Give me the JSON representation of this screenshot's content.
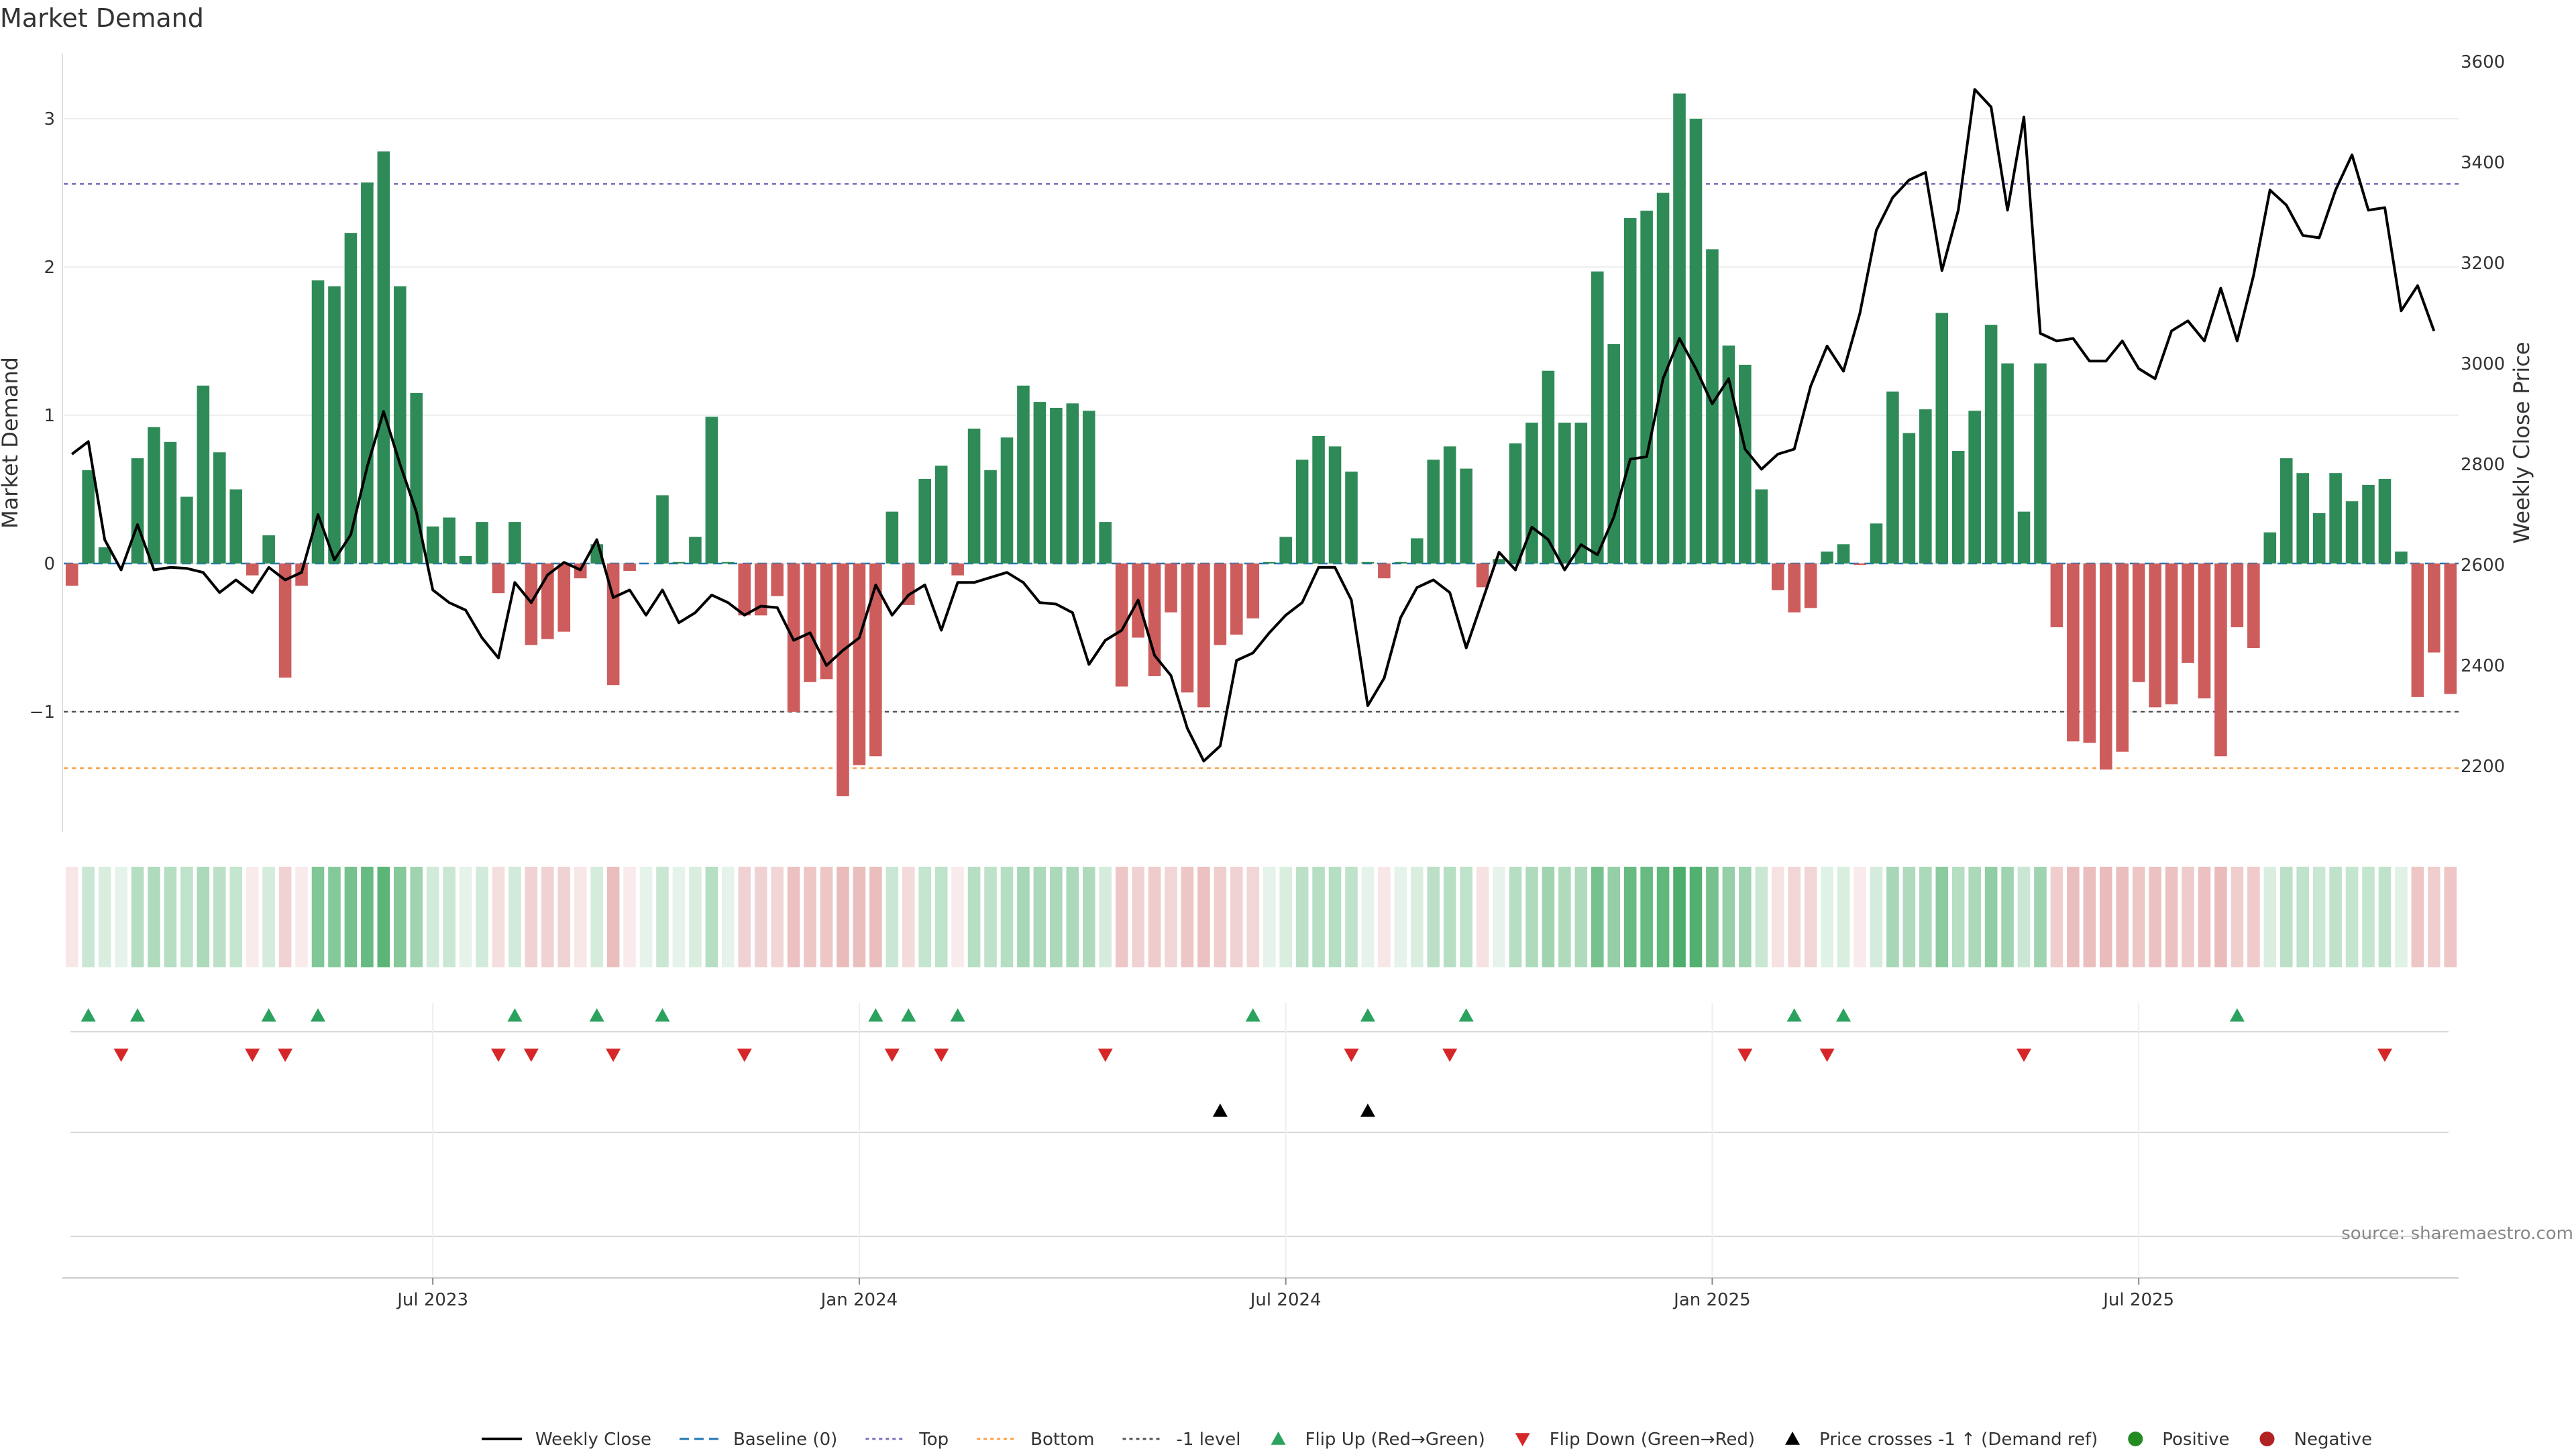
{
  "chart_data": {
    "type": "bar+line",
    "title": "Market Demand",
    "ylabel_left": "Market Demand",
    "ylabel_right": "Weekly Close Price",
    "source": "source: sharemaestro.com",
    "ylim_left": [
      -1.8,
      3.4
    ],
    "ylim_right": [
      2100,
      3600
    ],
    "left_ticks": [
      {
        "v": 3,
        "label": "3"
      },
      {
        "v": 2,
        "label": "2"
      },
      {
        "v": 1,
        "label": "1"
      },
      {
        "v": 0,
        "label": "0"
      },
      {
        "v": -1,
        "label": "−1"
      }
    ],
    "right_ticks": [
      {
        "v": 3600,
        "label": "3600"
      },
      {
        "v": 3400,
        "label": "3400"
      },
      {
        "v": 3200,
        "label": "3200"
      },
      {
        "v": 3000,
        "label": "3000"
      },
      {
        "v": 2800,
        "label": "2800"
      },
      {
        "v": 2600,
        "label": "2600"
      },
      {
        "v": 2400,
        "label": "2400"
      },
      {
        "v": 2200,
        "label": "2200"
      }
    ],
    "x_ticks": [
      {
        "week": 22,
        "label": "Jul 2023"
      },
      {
        "week": 48,
        "label": "Jan 2024"
      },
      {
        "week": 74,
        "label": "Jul 2024"
      },
      {
        "week": 100,
        "label": "Jan 2025"
      },
      {
        "week": 126,
        "label": "Jul 2025"
      }
    ],
    "reference_lines": {
      "top": 2.56,
      "bottom": -1.38,
      "minus_one": -1,
      "baseline": 0
    },
    "demand": [
      -0.15,
      0.63,
      0.11,
      0,
      0.71,
      0.92,
      0.82,
      0.45,
      1.2,
      0.75,
      0.5,
      -0.08,
      0.19,
      -0.77,
      -0.15,
      1.91,
      1.87,
      2.23,
      2.57,
      2.78,
      1.87,
      1.15,
      0.25,
      0.31,
      0.05,
      0.28,
      -0.2,
      0.28,
      -0.55,
      -0.51,
      -0.46,
      -0.1,
      0.13,
      -0.82,
      -0.05,
      0,
      0.46,
      0.01,
      0.18,
      0.99,
      0.01,
      -0.35,
      -0.35,
      -0.22,
      -1.0,
      -0.8,
      -0.78,
      -1.57,
      -1.36,
      -1.3,
      0.35,
      -0.28,
      0.57,
      0.66,
      -0.08,
      0.91,
      0.63,
      0.85,
      1.2,
      1.09,
      1.05,
      1.08,
      1.03,
      0.28,
      -0.83,
      -0.5,
      -0.76,
      -0.33,
      -0.87,
      -0.97,
      -0.55,
      -0.48,
      -0.37,
      0.01,
      0.18,
      0.7,
      0.86,
      0.79,
      0.62,
      0.01,
      -0.1,
      0.01,
      0.17,
      0.7,
      0.79,
      0.64,
      -0.16,
      0.03,
      0.81,
      0.95,
      1.3,
      0.95,
      0.95,
      1.97,
      1.48,
      2.33,
      2.38,
      2.5,
      3.17,
      3.0,
      2.12,
      1.47,
      1.34,
      0.5,
      -0.18,
      -0.33,
      -0.3,
      0.08,
      0.13,
      -0.01,
      0.27,
      1.16,
      0.88,
      1.04,
      1.69,
      0.76,
      1.03,
      1.61,
      1.35,
      0.35,
      1.35,
      -0.43,
      -1.2,
      -1.21,
      -1.39,
      -1.27,
      -0.8,
      -0.97,
      -0.95,
      -0.67,
      -0.91,
      -1.3,
      -0.43,
      -0.57,
      0.21,
      0.71,
      0.61,
      0.34,
      0.61,
      0.42,
      0.53,
      0.57,
      0.08,
      -0.9,
      -0.6,
      -0.88
    ],
    "weekly_close": [
      2820,
      2845,
      2650,
      2590,
      2680,
      2590,
      2595,
      2593,
      2585,
      2545,
      2570,
      2545,
      2595,
      2570,
      2585,
      2700,
      2610,
      2660,
      2795,
      2905,
      2800,
      2705,
      2550,
      2525,
      2510,
      2455,
      2415,
      2565,
      2525,
      2580,
      2605,
      2590,
      2650,
      2535,
      2550,
      2500,
      2550,
      2485,
      2505,
      2540,
      2525,
      2500,
      2518,
      2515,
      2450,
      2465,
      2400,
      2430,
      2455,
      2560,
      2500,
      2540,
      2560,
      2470,
      2565,
      2565,
      2575,
      2585,
      2565,
      2525,
      2522,
      2505,
      2402,
      2450,
      2470,
      2530,
      2420,
      2380,
      2275,
      2210,
      2240,
      2410,
      2425,
      2465,
      2500,
      2525,
      2595,
      2595,
      2530,
      2320,
      2375,
      2495,
      2555,
      2570,
      2545,
      2435,
      2530,
      2625,
      2590,
      2675,
      2650,
      2590,
      2640,
      2620,
      2695,
      2810,
      2815,
      2970,
      3050,
      2990,
      2920,
      2970,
      2830,
      2790,
      2820,
      2830,
      2955,
      3035,
      2985,
      3100,
      3265,
      3330,
      3365,
      3380,
      3185,
      3305,
      3545,
      3510,
      3305,
      3490,
      3060,
      3045,
      3050,
      3005,
      3005,
      3045,
      2990,
      2970,
      3065,
      3085,
      3045,
      3150,
      3045,
      3175,
      3345,
      3315,
      3255,
      3250,
      3345,
      3415,
      3305,
      3310,
      3105,
      3155,
      3065
    ],
    "heatmap_intensity": [
      0.15,
      0.25,
      0.18,
      0.12,
      0.35,
      0.38,
      0.35,
      0.3,
      0.4,
      0.32,
      0.28,
      0.12,
      0.2,
      0.28,
      0.12,
      0.6,
      0.58,
      0.65,
      0.72,
      0.78,
      0.58,
      0.45,
      0.22,
      0.25,
      0.12,
      0.22,
      0.2,
      0.22,
      0.28,
      0.28,
      0.28,
      0.15,
      0.2,
      0.4,
      0.12,
      0.12,
      0.25,
      0.12,
      0.18,
      0.35,
      0.12,
      0.28,
      0.28,
      0.25,
      0.38,
      0.35,
      0.35,
      0.42,
      0.4,
      0.4,
      0.25,
      0.22,
      0.28,
      0.3,
      0.12,
      0.35,
      0.3,
      0.35,
      0.42,
      0.4,
      0.4,
      0.4,
      0.38,
      0.2,
      0.35,
      0.28,
      0.32,
      0.25,
      0.35,
      0.38,
      0.3,
      0.28,
      0.25,
      0.12,
      0.18,
      0.32,
      0.35,
      0.35,
      0.3,
      0.12,
      0.15,
      0.12,
      0.18,
      0.32,
      0.35,
      0.3,
      0.18,
      0.12,
      0.35,
      0.38,
      0.45,
      0.38,
      0.38,
      0.65,
      0.5,
      0.72,
      0.72,
      0.75,
      0.85,
      0.82,
      0.65,
      0.5,
      0.45,
      0.25,
      0.18,
      0.25,
      0.25,
      0.15,
      0.18,
      0.12,
      0.2,
      0.42,
      0.38,
      0.4,
      0.55,
      0.35,
      0.4,
      0.52,
      0.45,
      0.25,
      0.45,
      0.3,
      0.4,
      0.4,
      0.42,
      0.4,
      0.35,
      0.38,
      0.38,
      0.32,
      0.38,
      0.42,
      0.3,
      0.32,
      0.18,
      0.32,
      0.3,
      0.25,
      0.3,
      0.28,
      0.28,
      0.3,
      0.15,
      0.35,
      0.3,
      0.35
    ],
    "flip_up_weeks": [
      1,
      4,
      12,
      15,
      27,
      32,
      36,
      49,
      51,
      54,
      72,
      79,
      85,
      105,
      108,
      132
    ],
    "flip_down_weeks": [
      3,
      11,
      13,
      26,
      28,
      33,
      41,
      50,
      53,
      63,
      78,
      84,
      102,
      107,
      119,
      141
    ],
    "price_cross_weeks": [
      70,
      79
    ],
    "legend": [
      {
        "key": "weekly_close",
        "label": "Weekly Close"
      },
      {
        "key": "baseline",
        "label": "Baseline (0)"
      },
      {
        "key": "top",
        "label": "Top"
      },
      {
        "key": "bottom",
        "label": "Bottom"
      },
      {
        "key": "minus_one",
        "label": "-1 level"
      },
      {
        "key": "flip_up",
        "label": "Flip Up (Red→Green)"
      },
      {
        "key": "flip_down",
        "label": "Flip Down (Green→Red)"
      },
      {
        "key": "price_cross",
        "label": "Price crosses -1 ↑ (Demand ref)"
      },
      {
        "key": "positive",
        "label": "Positive"
      },
      {
        "key": "negative",
        "label": "Negative"
      }
    ],
    "colors": {
      "positive": "#2e8b57",
      "negative": "#cd5c5c",
      "line": "#000000",
      "baseline": "#1f77b4",
      "top": "#7b6fbf",
      "bottom": "#ff9f40",
      "minus_one": "#555555",
      "flip_up": "#2ca25f",
      "flip_down": "#d62728",
      "price_cross": "#000000",
      "legend_positive": "#228b22",
      "legend_negative": "#b22222"
    }
  }
}
